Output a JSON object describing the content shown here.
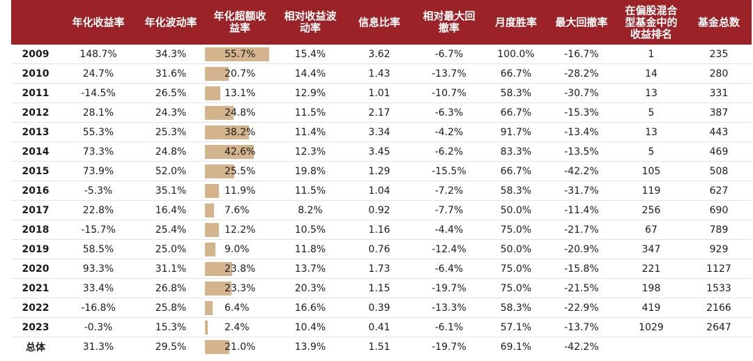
{
  "chart_data": {
    "type": "table",
    "columns": [
      "",
      "年化收益率",
      "年化波动率",
      "年化超额收\n益率",
      "相对收益波\n动率",
      "信息比率",
      "相对最大回\n撤率",
      "月度胜率",
      "最大回撤率",
      "在偏股混合\n型基金中的\n收益排名",
      "基金总数"
    ],
    "excess_return_bar": {
      "column": "年化超额收益率",
      "color": "#d4b48c",
      "max_value": 55.7
    },
    "rows": [
      {
        "year": "2009",
        "annual_return": "148.7%",
        "annual_volatility": "34.3%",
        "excess_return": "55.7%",
        "excess_value": 55.7,
        "relative_volatility": "15.4%",
        "info_ratio": "3.62",
        "relative_max_drawdown": "-6.7%",
        "monthly_win_rate": "100.0%",
        "max_drawdown": "-16.7%",
        "rank": "1",
        "fund_count": "235"
      },
      {
        "year": "2010",
        "annual_return": "24.7%",
        "annual_volatility": "31.6%",
        "excess_return": "20.7%",
        "excess_value": 20.7,
        "relative_volatility": "14.4%",
        "info_ratio": "1.43",
        "relative_max_drawdown": "-13.7%",
        "monthly_win_rate": "66.7%",
        "max_drawdown": "-28.2%",
        "rank": "14",
        "fund_count": "280"
      },
      {
        "year": "2011",
        "annual_return": "-14.5%",
        "annual_volatility": "26.5%",
        "excess_return": "13.1%",
        "excess_value": 13.1,
        "relative_volatility": "12.9%",
        "info_ratio": "1.01",
        "relative_max_drawdown": "-10.7%",
        "monthly_win_rate": "58.3%",
        "max_drawdown": "-30.7%",
        "rank": "13",
        "fund_count": "331"
      },
      {
        "year": "2012",
        "annual_return": "28.1%",
        "annual_volatility": "24.3%",
        "excess_return": "24.8%",
        "excess_value": 24.8,
        "relative_volatility": "11.5%",
        "info_ratio": "2.17",
        "relative_max_drawdown": "-6.3%",
        "monthly_win_rate": "66.7%",
        "max_drawdown": "-15.3%",
        "rank": "5",
        "fund_count": "387"
      },
      {
        "year": "2013",
        "annual_return": "55.3%",
        "annual_volatility": "25.3%",
        "excess_return": "38.2%",
        "excess_value": 38.2,
        "relative_volatility": "11.4%",
        "info_ratio": "3.34",
        "relative_max_drawdown": "-4.2%",
        "monthly_win_rate": "91.7%",
        "max_drawdown": "-13.4%",
        "rank": "13",
        "fund_count": "443"
      },
      {
        "year": "2014",
        "annual_return": "73.3%",
        "annual_volatility": "24.8%",
        "excess_return": "42.6%",
        "excess_value": 42.6,
        "relative_volatility": "12.3%",
        "info_ratio": "3.45",
        "relative_max_drawdown": "-6.2%",
        "monthly_win_rate": "83.3%",
        "max_drawdown": "-13.5%",
        "rank": "5",
        "fund_count": "469"
      },
      {
        "year": "2015",
        "annual_return": "73.9%",
        "annual_volatility": "52.0%",
        "excess_return": "25.5%",
        "excess_value": 25.5,
        "relative_volatility": "19.8%",
        "info_ratio": "1.29",
        "relative_max_drawdown": "-15.5%",
        "monthly_win_rate": "66.7%",
        "max_drawdown": "-42.2%",
        "rank": "105",
        "fund_count": "508"
      },
      {
        "year": "2016",
        "annual_return": "-5.3%",
        "annual_volatility": "35.1%",
        "excess_return": "11.9%",
        "excess_value": 11.9,
        "relative_volatility": "11.5%",
        "info_ratio": "1.04",
        "relative_max_drawdown": "-7.2%",
        "monthly_win_rate": "58.3%",
        "max_drawdown": "-31.7%",
        "rank": "119",
        "fund_count": "627"
      },
      {
        "year": "2017",
        "annual_return": "22.8%",
        "annual_volatility": "16.4%",
        "excess_return": "7.6%",
        "excess_value": 7.6,
        "relative_volatility": "8.2%",
        "info_ratio": "0.92",
        "relative_max_drawdown": "-7.7%",
        "monthly_win_rate": "50.0%",
        "max_drawdown": "-11.4%",
        "rank": "256",
        "fund_count": "690"
      },
      {
        "year": "2018",
        "annual_return": "-15.7%",
        "annual_volatility": "25.4%",
        "excess_return": "12.2%",
        "excess_value": 12.2,
        "relative_volatility": "10.5%",
        "info_ratio": "1.16",
        "relative_max_drawdown": "-4.4%",
        "monthly_win_rate": "75.0%",
        "max_drawdown": "-21.7%",
        "rank": "67",
        "fund_count": "789"
      },
      {
        "year": "2019",
        "annual_return": "58.5%",
        "annual_volatility": "25.0%",
        "excess_return": "9.0%",
        "excess_value": 9.0,
        "relative_volatility": "11.8%",
        "info_ratio": "0.76",
        "relative_max_drawdown": "-12.4%",
        "monthly_win_rate": "50.0%",
        "max_drawdown": "-20.9%",
        "rank": "347",
        "fund_count": "929"
      },
      {
        "year": "2020",
        "annual_return": "93.3%",
        "annual_volatility": "31.1%",
        "excess_return": "23.8%",
        "excess_value": 23.8,
        "relative_volatility": "13.7%",
        "info_ratio": "1.73",
        "relative_max_drawdown": "-6.4%",
        "monthly_win_rate": "75.0%",
        "max_drawdown": "-15.8%",
        "rank": "221",
        "fund_count": "1127"
      },
      {
        "year": "2021",
        "annual_return": "33.4%",
        "annual_volatility": "26.8%",
        "excess_return": "23.3%",
        "excess_value": 23.3,
        "relative_volatility": "20.3%",
        "info_ratio": "1.15",
        "relative_max_drawdown": "-19.7%",
        "monthly_win_rate": "75.0%",
        "max_drawdown": "-21.5%",
        "rank": "198",
        "fund_count": "1533"
      },
      {
        "year": "2022",
        "annual_return": "-16.8%",
        "annual_volatility": "25.8%",
        "excess_return": "6.4%",
        "excess_value": 6.4,
        "relative_volatility": "16.6%",
        "info_ratio": "0.39",
        "relative_max_drawdown": "-13.3%",
        "monthly_win_rate": "58.3%",
        "max_drawdown": "-22.9%",
        "rank": "419",
        "fund_count": "2166"
      },
      {
        "year": "2023",
        "annual_return": "-0.3%",
        "annual_volatility": "15.3%",
        "excess_return": "2.4%",
        "excess_value": 2.4,
        "relative_volatility": "10.4%",
        "info_ratio": "0.41",
        "relative_max_drawdown": "-6.1%",
        "monthly_win_rate": "57.1%",
        "max_drawdown": "-13.7%",
        "rank": "1029",
        "fund_count": "2647"
      },
      {
        "year": "总体",
        "annual_return": "31.3%",
        "annual_volatility": "29.5%",
        "excess_return": "21.0%",
        "excess_value": 21.0,
        "relative_volatility": "13.9%",
        "info_ratio": "1.51",
        "relative_max_drawdown": "-19.7%",
        "monthly_win_rate": "69.1%",
        "max_drawdown": "-42.2%",
        "rank": "",
        "fund_count": ""
      }
    ]
  }
}
